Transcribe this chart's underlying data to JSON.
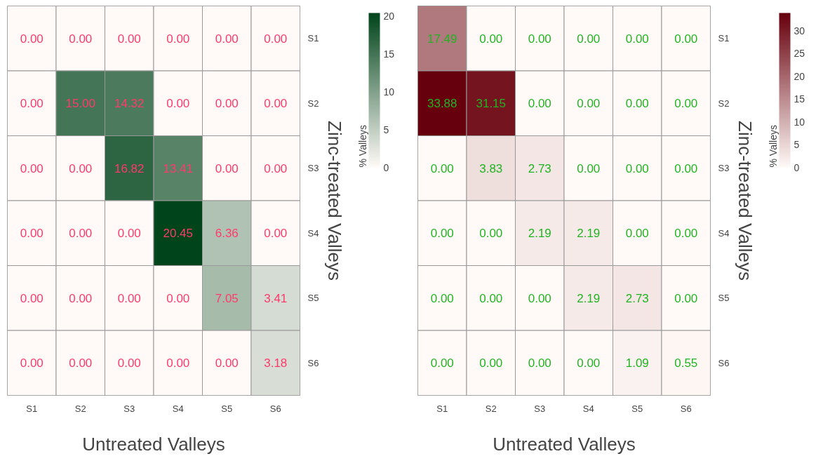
{
  "chart_data": [
    {
      "type": "heatmap",
      "xlabel": "Untreated Valleys",
      "y2label": "Zinc-treated Valleys",
      "clabel": "% Valleys",
      "color": "#00441b",
      "categories": [
        "S1",
        "S2",
        "S3",
        "S4",
        "S5",
        "S6"
      ],
      "y_categories": [
        "S1",
        "S2",
        "S3",
        "S4",
        "S5",
        "S6"
      ],
      "cells": [
        [
          0,
          0,
          0,
          0,
          0,
          0
        ],
        [
          0,
          15.0,
          14.32,
          0,
          0,
          0
        ],
        [
          0,
          0,
          16.82,
          13.41,
          0,
          0
        ],
        [
          0,
          0,
          0,
          20.45,
          6.36,
          0
        ],
        [
          0,
          0,
          0,
          0,
          7.05,
          3.41
        ],
        [
          0,
          0,
          0,
          0,
          0,
          3.18
        ]
      ],
      "cell_labels": [
        [
          "0.00",
          "0.00",
          "0.00",
          "0.00",
          "0.00",
          "0.00"
        ],
        [
          "0.00",
          "15.00",
          "14.32",
          "0.00",
          "0.00",
          "0.00"
        ],
        [
          "0.00",
          "0.00",
          "16.82",
          "13.41",
          "0.00",
          "0.00"
        ],
        [
          "0.00",
          "0.00",
          "0.00",
          "20.45",
          "6.36",
          "0.00"
        ],
        [
          "0.00",
          "0.00",
          "0.00",
          "0.00",
          "7.05",
          "3.41"
        ],
        [
          "0.00",
          "0.00",
          "0.00",
          "0.00",
          "0.00",
          "3.18"
        ]
      ],
      "clim": [
        0,
        20.45
      ],
      "cticks": [
        0,
        5,
        10,
        15,
        20
      ]
    },
    {
      "type": "heatmap",
      "xlabel": "Untreated Valleys",
      "y2label": "Zinc-treated Valleys",
      "clabel": "% Valleys",
      "color": "#67000d",
      "categories": [
        "S1",
        "S2",
        "S3",
        "S4",
        "S5",
        "S6"
      ],
      "y_categories": [
        "S1",
        "S2",
        "S3",
        "S4",
        "S5",
        "S6"
      ],
      "cells": [
        [
          17.49,
          0,
          0,
          0,
          0,
          0
        ],
        [
          33.88,
          31.15,
          0,
          0,
          0,
          0
        ],
        [
          0,
          3.83,
          2.73,
          0,
          0,
          0
        ],
        [
          0,
          0,
          2.19,
          2.19,
          0,
          0
        ],
        [
          0,
          0,
          0,
          2.19,
          2.73,
          0
        ],
        [
          0,
          0,
          0,
          0,
          1.09,
          0.55
        ]
      ],
      "cell_labels": [
        [
          "17.49",
          "0.00",
          "0.00",
          "0.00",
          "0.00",
          "0.00"
        ],
        [
          "33.88",
          "31.15",
          "0.00",
          "0.00",
          "0.00",
          "0.00"
        ],
        [
          "0.00",
          "3.83",
          "2.73",
          "0.00",
          "0.00",
          "0.00"
        ],
        [
          "0.00",
          "0.00",
          "2.19",
          "2.19",
          "0.00",
          "0.00"
        ],
        [
          "0.00",
          "0.00",
          "0.00",
          "2.19",
          "2.73",
          "0.00"
        ],
        [
          "0.00",
          "0.00",
          "0.00",
          "0.00",
          "1.09",
          "0.55"
        ]
      ],
      "clim": [
        0,
        33.88
      ],
      "cticks": [
        0,
        5,
        10,
        15,
        20,
        25,
        30
      ]
    }
  ]
}
